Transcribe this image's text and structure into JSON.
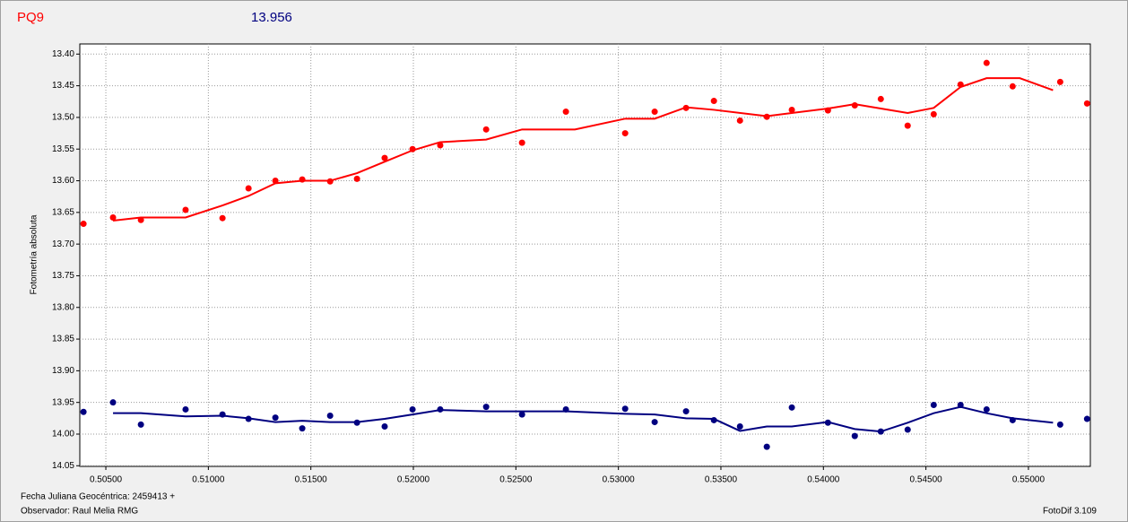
{
  "header": {
    "star": "PQ9",
    "magnitude": "13.956"
  },
  "footer": {
    "date_label": "Fecha Juliana Geocéntrica: 2459413 +",
    "observer": "Observador: Raul Melia RMG",
    "software": "FotoDif 3.109"
  },
  "chart_data": {
    "type": "scatter",
    "ylabel": "Fotometría absoluta",
    "xlim": [
      0.50373,
      0.55302
    ],
    "ylim": [
      14.051,
      13.384
    ],
    "grid": true,
    "xticks": [
      {
        "value": 0.505,
        "label": "0.50500"
      },
      {
        "value": 0.51,
        "label": "0.51000"
      },
      {
        "value": 0.515,
        "label": "0.51500"
      },
      {
        "value": 0.52,
        "label": "0.52000"
      },
      {
        "value": 0.525,
        "label": "0.52500"
      },
      {
        "value": 0.53,
        "label": "0.53000"
      },
      {
        "value": 0.535,
        "label": "0.53500"
      },
      {
        "value": 0.54,
        "label": "0.54000"
      },
      {
        "value": 0.545,
        "label": "0.54500"
      },
      {
        "value": 0.55,
        "label": "0.55000"
      }
    ],
    "yticks": [
      {
        "value": 13.4,
        "label": "13.40"
      },
      13.45,
      {
        "value": 13.5,
        "label": "13.50"
      },
      13.55,
      {
        "value": 13.6,
        "label": "13.60"
      },
      13.65,
      {
        "value": 13.7,
        "label": "13.70"
      },
      13.75,
      {
        "value": 13.8,
        "label": "13.80"
      },
      13.85,
      {
        "value": 13.9,
        "label": "13.90"
      },
      13.95,
      {
        "value": 14.0,
        "label": "14.00"
      },
      14.05
    ],
    "series": [
      {
        "mode": "markers",
        "color": "#ff0000",
        "x": [
          0.50391,
          0.50535,
          0.50671,
          0.50889,
          0.51069,
          0.51196,
          0.51327,
          0.51458,
          0.51594,
          0.51725,
          0.5186,
          0.51996,
          0.52131,
          0.52355,
          0.5253,
          0.52744,
          0.53033,
          0.53177,
          0.5333,
          0.53466,
          0.53593,
          0.53724,
          0.53846,
          0.54022,
          0.54153,
          0.5428,
          0.54411,
          0.54538,
          0.54669,
          0.54796,
          0.54923,
          0.55155,
          0.55286
        ],
        "values": [
          13.668,
          13.658,
          13.662,
          13.646,
          13.659,
          13.612,
          13.6,
          13.598,
          13.601,
          13.597,
          13.564,
          13.55,
          13.544,
          13.519,
          13.54,
          13.491,
          13.525,
          13.491,
          13.485,
          13.474,
          13.505,
          13.499,
          13.488,
          13.489,
          13.481,
          13.471,
          13.513,
          13.495,
          13.448,
          13.414,
          13.451,
          13.444,
          13.478
        ]
      },
      {
        "mode": "line",
        "color": "#ff0000",
        "x": [
          0.50535,
          0.50671,
          0.50889,
          0.51069,
          0.51196,
          0.51327,
          0.51458,
          0.51594,
          0.51725,
          0.5186,
          0.51996,
          0.52131,
          0.52355,
          0.5253,
          0.52788,
          0.53033,
          0.53177,
          0.5333,
          0.53466,
          0.53724,
          0.53846,
          0.54022,
          0.54153,
          0.5428,
          0.54411,
          0.54538,
          0.54669,
          0.54796,
          0.54958,
          0.5512
        ],
        "values": [
          13.663,
          13.658,
          13.658,
          13.639,
          13.624,
          13.604,
          13.6,
          13.6,
          13.588,
          13.57,
          13.552,
          13.539,
          13.535,
          13.519,
          13.519,
          13.502,
          13.502,
          13.484,
          13.488,
          13.498,
          13.493,
          13.486,
          13.479,
          13.486,
          13.493,
          13.485,
          13.452,
          13.438,
          13.438,
          13.457
        ]
      },
      {
        "mode": "markers",
        "color": "#000080",
        "x": [
          0.50391,
          0.50535,
          0.50671,
          0.50889,
          0.51069,
          0.51196,
          0.51327,
          0.51458,
          0.51594,
          0.51725,
          0.5186,
          0.51996,
          0.52131,
          0.52355,
          0.5253,
          0.52744,
          0.53033,
          0.53177,
          0.5333,
          0.53466,
          0.53593,
          0.53724,
          0.53846,
          0.54022,
          0.54153,
          0.5428,
          0.54411,
          0.54538,
          0.54669,
          0.54796,
          0.54923,
          0.55155,
          0.55286
        ],
        "values": [
          13.965,
          13.95,
          13.985,
          13.961,
          13.969,
          13.976,
          13.974,
          13.991,
          13.971,
          13.982,
          13.988,
          13.961,
          13.961,
          13.957,
          13.969,
          13.961,
          13.96,
          13.981,
          13.964,
          13.978,
          13.988,
          14.02,
          13.958,
          13.982,
          14.003,
          13.996,
          13.993,
          13.954,
          13.954,
          13.961,
          13.978,
          13.985,
          13.976
        ]
      },
      {
        "mode": "line",
        "color": "#000080",
        "x": [
          0.50535,
          0.50671,
          0.50889,
          0.51069,
          0.51196,
          0.51327,
          0.51458,
          0.51594,
          0.51725,
          0.5186,
          0.51996,
          0.52131,
          0.52355,
          0.52744,
          0.53033,
          0.53177,
          0.5333,
          0.53466,
          0.53593,
          0.53724,
          0.53846,
          0.54022,
          0.54153,
          0.5428,
          0.54411,
          0.54538,
          0.54669,
          0.54796,
          0.54923,
          0.5512
        ],
        "values": [
          13.967,
          13.967,
          13.972,
          13.971,
          13.975,
          13.981,
          13.979,
          13.981,
          13.981,
          13.976,
          13.969,
          13.962,
          13.964,
          13.964,
          13.968,
          13.969,
          13.975,
          13.976,
          13.995,
          13.988,
          13.988,
          13.981,
          13.992,
          13.996,
          13.982,
          13.967,
          13.957,
          13.967,
          13.975,
          13.982
        ]
      }
    ]
  }
}
